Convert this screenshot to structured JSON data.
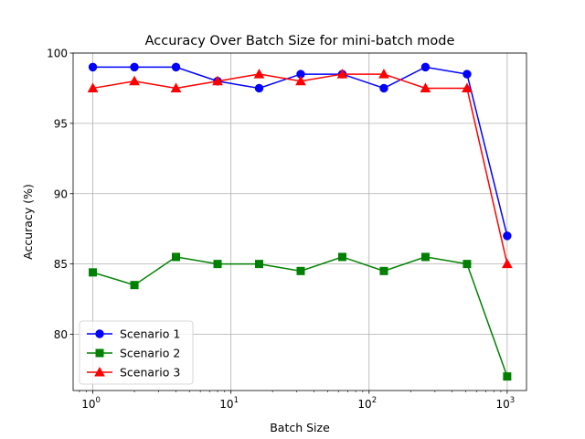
{
  "chart_data": {
    "type": "line",
    "title": "Accuracy Over Batch Size for mini-batch mode",
    "xlabel": "Batch Size",
    "ylabel": "Accuracy (%)",
    "xscale": "log",
    "xlim": [
      0.72,
      1380
    ],
    "ylim": [
      76,
      100
    ],
    "grid": true,
    "legend_position": "lower-left",
    "x": [
      1,
      2,
      4,
      8,
      16,
      32,
      64,
      128,
      256,
      512,
      1000
    ],
    "x_ticks": [
      1,
      10,
      100,
      1000
    ],
    "x_tick_labels": [
      [
        "10",
        "0"
      ],
      [
        "10",
        "1"
      ],
      [
        "10",
        "2"
      ],
      [
        "10",
        "3"
      ]
    ],
    "y_ticks": [
      80,
      85,
      90,
      95,
      100
    ],
    "y_tick_labels": [
      "80",
      "85",
      "90",
      "95",
      "100"
    ],
    "series": [
      {
        "name": "Scenario 1",
        "color": "#0000ff",
        "marker": "circle",
        "values": [
          99.0,
          99.0,
          99.0,
          98.0,
          97.5,
          98.5,
          98.5,
          97.5,
          99.0,
          98.5,
          87.0
        ]
      },
      {
        "name": "Scenario 2",
        "color": "#008000",
        "marker": "square",
        "values": [
          84.4,
          83.5,
          85.5,
          85.0,
          85.0,
          84.5,
          85.5,
          84.5,
          85.5,
          85.0,
          77.0
        ]
      },
      {
        "name": "Scenario 3",
        "color": "#ff0000",
        "marker": "triangle",
        "values": [
          97.5,
          98.0,
          97.5,
          98.0,
          98.5,
          98.0,
          98.5,
          98.5,
          97.5,
          97.5,
          85.0
        ]
      }
    ]
  }
}
